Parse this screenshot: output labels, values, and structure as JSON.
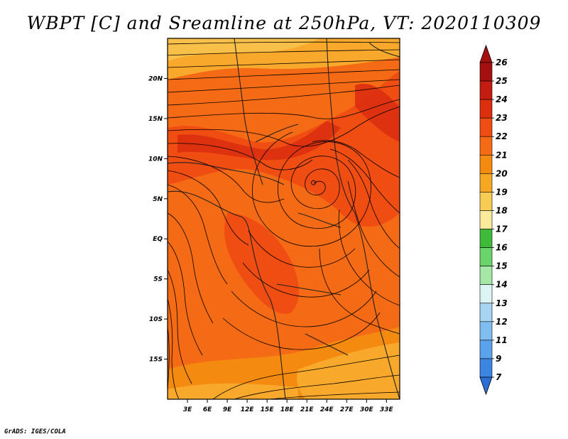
{
  "title": "WBPT [C] and Sreamline at 250hPa, VT: 2020110309",
  "credit": "GrADS: IGES/COLA",
  "map": {
    "lat_range": [
      -20,
      25
    ],
    "lon_range": [
      0,
      35
    ],
    "lat_ticks": [
      {
        "value": 20,
        "label": "20N"
      },
      {
        "value": 15,
        "label": "15N"
      },
      {
        "value": 10,
        "label": "10N"
      },
      {
        "value": 5,
        "label": "5N"
      },
      {
        "value": 0,
        "label": "EQ"
      },
      {
        "value": -5,
        "label": "5S"
      },
      {
        "value": -10,
        "label": "10S"
      },
      {
        "value": -15,
        "label": "15S"
      }
    ],
    "lon_ticks": [
      {
        "value": 3,
        "label": "3E"
      },
      {
        "value": 6,
        "label": "6E"
      },
      {
        "value": 9,
        "label": "9E"
      },
      {
        "value": 12,
        "label": "12E"
      },
      {
        "value": 15,
        "label": "15E"
      },
      {
        "value": 18,
        "label": "18E"
      },
      {
        "value": 21,
        "label": "21E"
      },
      {
        "value": 24,
        "label": "24E"
      },
      {
        "value": 27,
        "label": "27E"
      },
      {
        "value": 30,
        "label": "30E"
      },
      {
        "value": 33,
        "label": "33E"
      }
    ],
    "cyclone_center": {
      "lon": 22,
      "lat": 7
    }
  },
  "colorbar": {
    "levels": [
      "26",
      "25",
      "24",
      "23",
      "22",
      "21",
      "20",
      "19",
      "18",
      "17",
      "16",
      "15",
      "14",
      "13",
      "12",
      "11",
      "9",
      "7"
    ],
    "colors": [
      "#a50f0f",
      "#c41c10",
      "#dc2f10",
      "#ef4d12",
      "#f56a14",
      "#f58a10",
      "#f7a823",
      "#f8cb52",
      "#faeb9c",
      "#3fba3a",
      "#6ad36a",
      "#a6e6a6",
      "#dcf4f4",
      "#a8d4f4",
      "#80bdf0",
      "#5aa3ec",
      "#3d85e2",
      "#2a6fd8"
    ]
  }
}
